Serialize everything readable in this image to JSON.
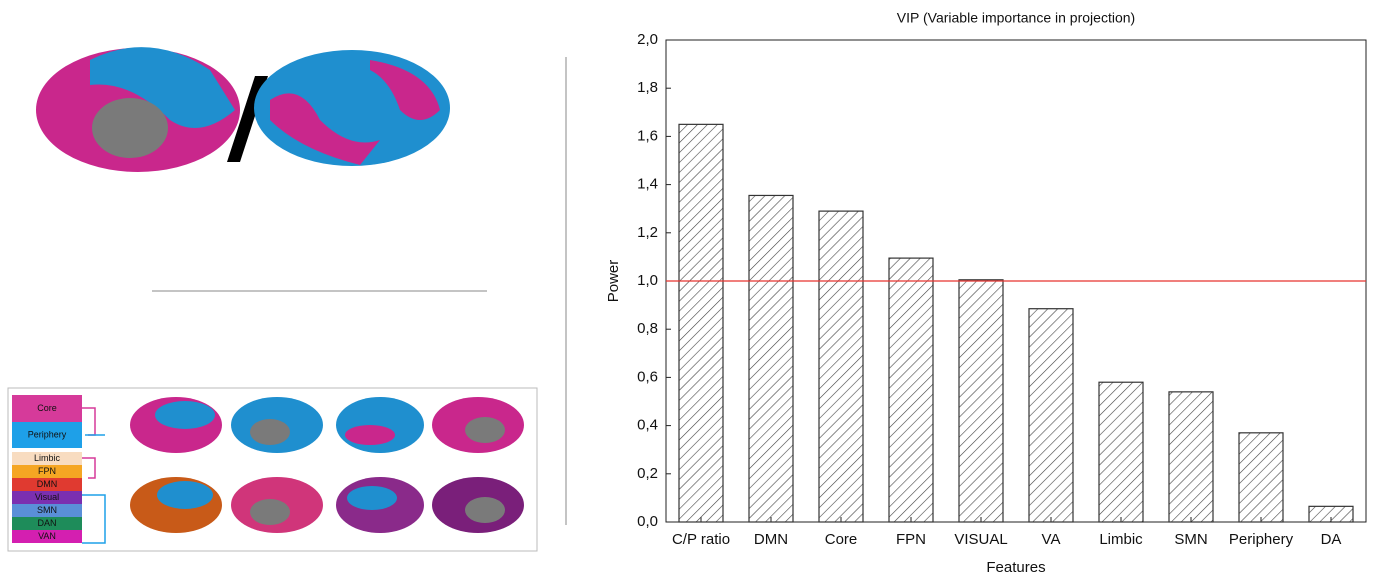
{
  "chart_data": {
    "type": "bar",
    "title": "VIP (Variable importance in projection)",
    "x_label": "Features",
    "y_label": "Power",
    "categories": [
      "C/P ratio",
      "DMN",
      "Core",
      "FPN",
      "VISUAL",
      "VA",
      "Limbic",
      "SMN",
      "Periphery",
      "DA"
    ],
    "values": [
      1.65,
      1.355,
      1.29,
      1.095,
      1.005,
      0.885,
      0.58,
      0.54,
      0.37,
      0.065
    ],
    "color": "#333333",
    "ylim": [
      0,
      2
    ],
    "yticks": [
      {
        "value": 0,
        "label": "0,0"
      },
      {
        "value": 0.2,
        "label": "0,2"
      },
      {
        "value": 0.4,
        "label": "0,4"
      },
      {
        "value": 0.6,
        "label": "0,6"
      },
      {
        "value": 0.8,
        "label": "0,8"
      },
      {
        "value": 1,
        "label": "1,0"
      },
      {
        "value": 1.2,
        "label": "1,2"
      },
      {
        "value": 1.4,
        "label": "1,4"
      },
      {
        "value": 1.6,
        "label": "1,6"
      },
      {
        "value": 1.8,
        "label": "1,8"
      },
      {
        "value": 2,
        "label": "2,0"
      }
    ],
    "reference_line": {
      "value": 1,
      "color": "#e8332f"
    },
    "grid": false
  },
  "network_legend": {
    "labels": [
      "Core",
      "Periphery",
      "Limbic",
      "FPN",
      "DMN",
      "Visual",
      "SMN",
      "DAN",
      "VAN"
    ]
  }
}
